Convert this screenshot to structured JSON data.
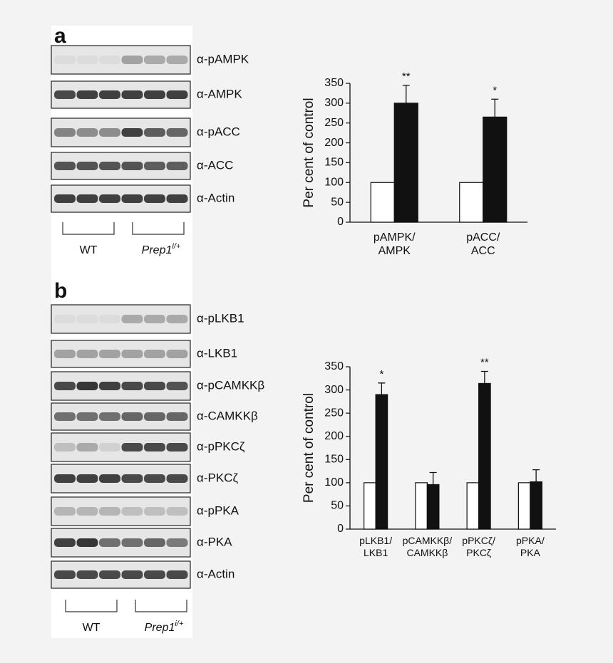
{
  "panels": [
    {
      "letter": "a",
      "rows": [
        "α-pAMPK",
        "α-AMPK",
        "α-pACC",
        "α-ACC",
        "α-Actin"
      ],
      "group_wt": "WT",
      "group_mut": "Prep1",
      "group_mut_sup": "i/+"
    },
    {
      "letter": "b",
      "rows": [
        "α-pLKB1",
        "α-LKB1",
        "α-pCAMKKβ",
        "α-CAMKKβ",
        "α-pPKCζ",
        "α-PKCζ",
        "α-pPKA",
        "α-PKA",
        "α-Actin"
      ],
      "group_wt": "WT",
      "group_mut": "Prep1",
      "group_mut_sup": "i/+"
    }
  ],
  "chart_data": [
    {
      "type": "bar",
      "ylabel": "Per cent of control",
      "categories": [
        "pAMPK/\nAMPK",
        "pACC/\nACC"
      ],
      "series": [
        {
          "color": "#ffffff",
          "values": [
            100,
            100
          ]
        },
        {
          "color": "#111111",
          "values": [
            300,
            265
          ],
          "errors": [
            45,
            45
          ]
        }
      ],
      "significance": [
        "**",
        "*"
      ],
      "ylim": [
        0,
        350
      ],
      "yticks": [
        0,
        50,
        100,
        150,
        200,
        250,
        300,
        350
      ]
    },
    {
      "type": "bar",
      "ylabel": "Per cent of control",
      "categories": [
        "pLKB1/\nLKB1",
        "pCAMKKβ/\nCAMKKβ",
        "pPKCζ/\nPKCζ",
        "pPKA/\nPKA"
      ],
      "series": [
        {
          "color": "#ffffff",
          "values": [
            100,
            100,
            100,
            100
          ]
        },
        {
          "color": "#111111",
          "values": [
            290,
            96,
            314,
            102
          ],
          "errors": [
            25,
            26,
            26,
            26
          ]
        }
      ],
      "significance": [
        "*",
        null,
        "**",
        null
      ],
      "ylim": [
        0,
        350
      ],
      "yticks": [
        0,
        50,
        100,
        150,
        200,
        250,
        300,
        350
      ]
    }
  ]
}
